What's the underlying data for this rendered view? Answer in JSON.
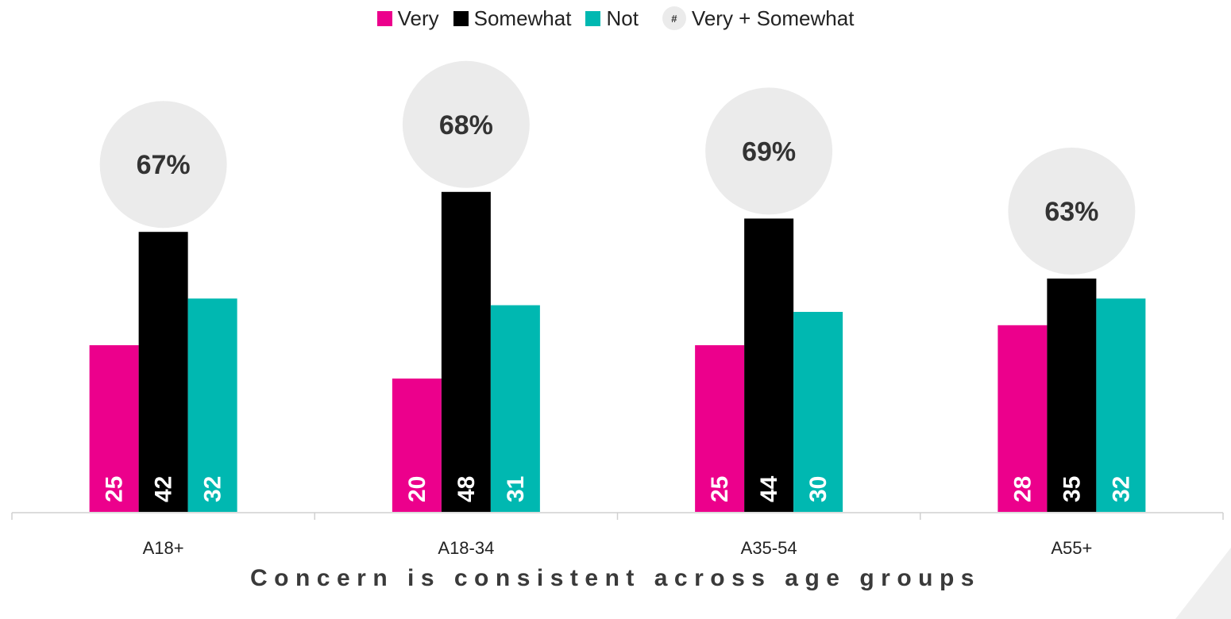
{
  "legend": {
    "items": [
      {
        "label": "Very",
        "color": "#ec008c",
        "kind": "swatch"
      },
      {
        "label": "Somewhat",
        "color": "#000000",
        "kind": "swatch"
      },
      {
        "label": "Not",
        "color": "#00b8b1",
        "kind": "swatch"
      },
      {
        "label": "Very + Somewhat",
        "symbol": "#",
        "color": "#ebebeb",
        "kind": "bubble"
      }
    ]
  },
  "subtitle": "Concern is consistent across age groups",
  "chart_data": {
    "type": "bar",
    "categories": [
      "A18+",
      "A18-34",
      "A35-54",
      "A55+"
    ],
    "series": [
      {
        "name": "Very",
        "color": "#ec008c",
        "values": [
          25,
          20,
          25,
          28
        ]
      },
      {
        "name": "Somewhat",
        "color": "#000000",
        "values": [
          42,
          48,
          44,
          35
        ]
      },
      {
        "name": "Not",
        "color": "#00b8b1",
        "values": [
          32,
          31,
          30,
          32
        ]
      }
    ],
    "totals": [
      "67%",
      "68%",
      "69%",
      "63%"
    ],
    "ylim": [
      0,
      50
    ],
    "grid": false,
    "legend_position": "top-center",
    "data_labels": "inside-bottom-rotated"
  }
}
